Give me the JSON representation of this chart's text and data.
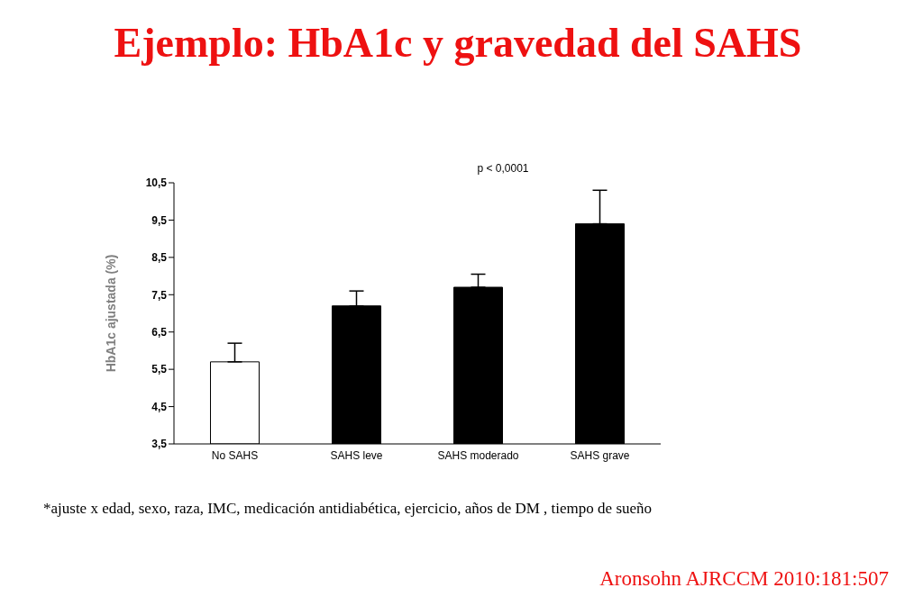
{
  "chart_data": {
    "type": "bar",
    "title": "Ejemplo: HbA1c y gravedad del SAHS",
    "ylabel": "HbA1c ajustada (%)",
    "categories": [
      "No SAHS",
      "SAHS leve",
      "SAHS moderado",
      "SAHS grave"
    ],
    "values": [
      5.7,
      7.2,
      7.7,
      9.4
    ],
    "colors": [
      "#ffffff",
      "#000000",
      "#000000",
      "#000000"
    ],
    "errors": [
      [
        5.7,
        6.2
      ],
      [
        7.2,
        7.6
      ],
      [
        7.7,
        8.05
      ],
      [
        9.4,
        10.3
      ]
    ],
    "ylim": [
      3.5,
      10.5
    ],
    "yticks": [
      {
        "value": 3.5,
        "label": "3,5"
      },
      {
        "value": 4.5,
        "label": "4,5"
      },
      {
        "value": 5.5,
        "label": "5,5"
      },
      {
        "value": 6.5,
        "label": "6,5"
      },
      {
        "value": 7.5,
        "label": "7,5"
      },
      {
        "value": 8.5,
        "label": "8,5"
      },
      {
        "value": 9.5,
        "label": "9,5"
      },
      {
        "value": 10.5,
        "label": "10,5"
      }
    ],
    "grid": false,
    "legend": false,
    "annotations": [
      "p < 0,0001",
      "*ajuste x edad, sexo, raza, IMC, medicación antidiabética, ejercicio, años de DM , tiempo de sueño",
      "Aronsohn AJRCCM 2010:181:507"
    ]
  }
}
